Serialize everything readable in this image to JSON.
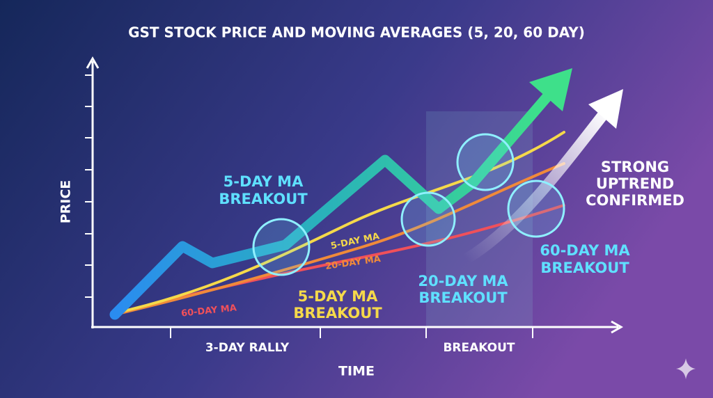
{
  "title": "GST STOCK PRICE AND MOVING AVERAGES (5, 20, 60 DAY)",
  "axes": {
    "y_label": "PRICE",
    "x_label": "TIME"
  },
  "x_labels": [
    "3-DAY RALLY",
    "BREAKOUT"
  ],
  "line_labels": {
    "ma5": "5-DAY MA",
    "ma20": "20-DAY MA",
    "ma60": "60-DAY MA"
  },
  "annotations": {
    "ma5_breakout_top": [
      "5-DAY MA",
      "BREAKOUT"
    ],
    "ma5_breakout_bottom": [
      "5-DAY MA",
      "BREAKOUT"
    ],
    "ma20_breakout": [
      "20-DAY MA",
      "BREAKOUT"
    ],
    "ma60_breakout": [
      "60-DAY MA",
      "BREAKOUT"
    ],
    "uptrend": [
      "STRONG",
      "UPTREND",
      "CONFIRMED"
    ]
  }
}
